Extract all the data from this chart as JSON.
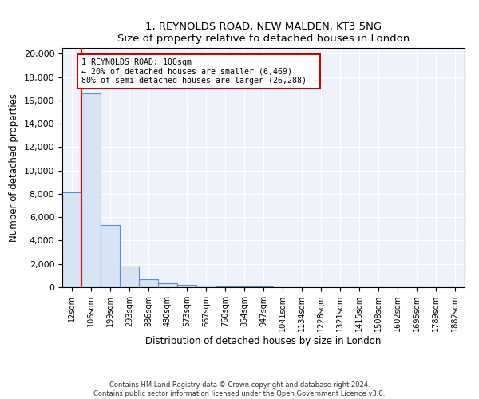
{
  "title1": "1, REYNOLDS ROAD, NEW MALDEN, KT3 5NG",
  "title2": "Size of property relative to detached houses in London",
  "xlabel": "Distribution of detached houses by size in London",
  "ylabel": "Number of detached properties",
  "bar_values": [
    8100,
    16600,
    5300,
    1800,
    650,
    350,
    220,
    120,
    80,
    60,
    40,
    30,
    20,
    15,
    10,
    8,
    6,
    5,
    4,
    3,
    2
  ],
  "bar_labels": [
    "12sqm",
    "106sqm",
    "199sqm",
    "293sqm",
    "386sqm",
    "480sqm",
    "573sqm",
    "667sqm",
    "760sqm",
    "854sqm",
    "947sqm",
    "1041sqm",
    "1134sqm",
    "1228sqm",
    "1321sqm",
    "1415sqm",
    "1508sqm",
    "1602sqm",
    "1695sqm",
    "1789sqm",
    "1882sqm"
  ],
  "bar_color": "#d6e4f5",
  "bar_edge_color": "#5b8fc9",
  "red_line_x": 1.0,
  "annotation_text": "1 REYNOLDS ROAD: 100sqm\n← 20% of detached houses are smaller (6,469)\n80% of semi-detached houses are larger (26,288) →",
  "annotation_box_color": "#ffffff",
  "annotation_box_edge": "#cc0000",
  "ylim": [
    0,
    20500
  ],
  "yticks": [
    0,
    2000,
    4000,
    6000,
    8000,
    10000,
    12000,
    14000,
    16000,
    18000,
    20000
  ],
  "footer1": "Contains HM Land Registry data © Crown copyright and database right 2024.",
  "footer2": "Contains public sector information licensed under the Open Government Licence v3.0.",
  "background_color": "#eef2fb",
  "grid_color": "#ffffff"
}
